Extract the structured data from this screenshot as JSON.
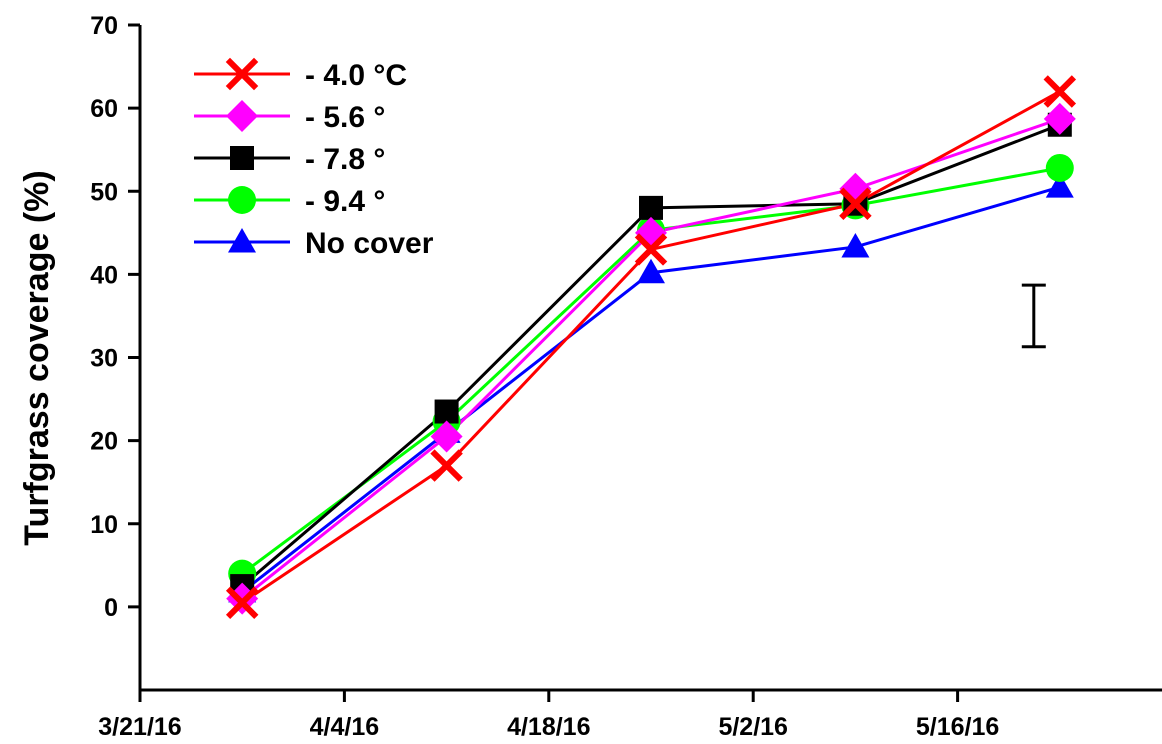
{
  "chart_data": {
    "type": "line",
    "title": "",
    "xlabel": "",
    "ylabel": "Turfgrass coverage (%)",
    "x_ticks": [
      "3/21/16",
      "4/4/16",
      "4/18/16",
      "5/2/16",
      "5/16/16"
    ],
    "xlim": [
      "2016-03-21",
      "2016-05-30"
    ],
    "ylim": [
      -10,
      70
    ],
    "y_ticks": [
      "0",
      "10",
      "20",
      "30",
      "40",
      "50",
      "60",
      "70"
    ],
    "x": [
      "2016-03-28",
      "2016-04-11",
      "2016-04-25",
      "2016-05-09",
      "2016-05-23"
    ],
    "series": [
      {
        "name": "- 4.0 °C",
        "color": "#ff0000",
        "marker": "x",
        "values": [
          0.5,
          17,
          43,
          48.5,
          62
        ]
      },
      {
        "name": "- 5.6 °",
        "color": "#ff00ff",
        "marker": "diamond",
        "values": [
          1,
          20.5,
          45,
          50.3,
          58.7
        ]
      },
      {
        "name": "- 7.8 °",
        "color": "#000000",
        "marker": "square",
        "values": [
          2.5,
          23.5,
          48,
          48.5,
          58
        ]
      },
      {
        "name": "- 9.4 °",
        "color": "#00ff00",
        "marker": "circle",
        "values": [
          4,
          22.3,
          45.3,
          48.3,
          52.8
        ]
      },
      {
        "name": "No cover",
        "color": "#0000ff",
        "marker": "triangle",
        "values": [
          1.8,
          21,
          40.2,
          43.3,
          50.5
        ]
      }
    ],
    "error_bar": {
      "x": "2016-05-23",
      "low": 31.3,
      "high": 38.7
    },
    "legend_position": "top-left",
    "grid": false
  }
}
